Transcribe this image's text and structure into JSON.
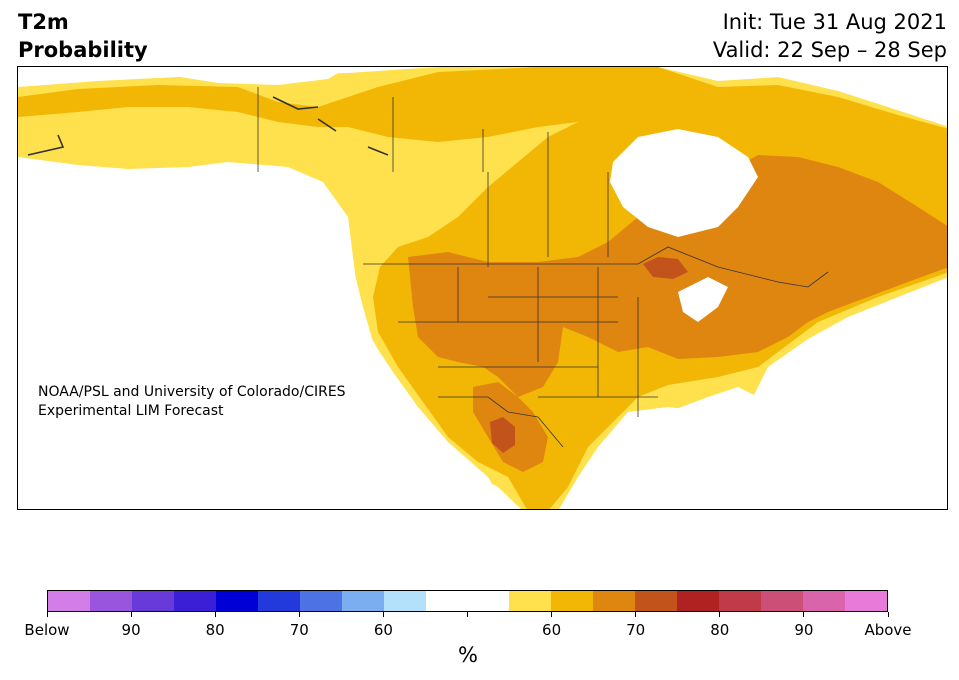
{
  "header": {
    "title_line1": "T2m",
    "title_line2": "Probability",
    "init": "Init: Tue 31 Aug 2021",
    "valid": "Valid: 22 Sep – 28 Sep"
  },
  "map": {
    "credit_line1": "NOAA/PSL and University of Colorado/CIRES",
    "credit_line2": "Experimental LIM Forecast",
    "colors": {
      "land_neutral": "#ffffff",
      "above_55_60": "#ffe14d",
      "above_60_65": "#f2b705",
      "above_65_70": "#de8610",
      "above_70_75": "#c2531b",
      "borders": "#333333"
    }
  },
  "colorbar": {
    "unit": "%",
    "colors": [
      "#d37de8",
      "#9a55df",
      "#673ad9",
      "#3a1fd6",
      "#0000d6",
      "#2239db",
      "#4c72e3",
      "#7aaef0",
      "#b3e0fa",
      "#ffffff",
      "#ffffff",
      "#ffe14d",
      "#f2b705",
      "#de8610",
      "#c2531b",
      "#b02222",
      "#c03a4a",
      "#cc4f78",
      "#da64ab",
      "#e87ad9"
    ],
    "labels": [
      "Below",
      "90",
      "80",
      "70",
      "60",
      "",
      "60",
      "70",
      "80",
      "90",
      "Above"
    ]
  }
}
